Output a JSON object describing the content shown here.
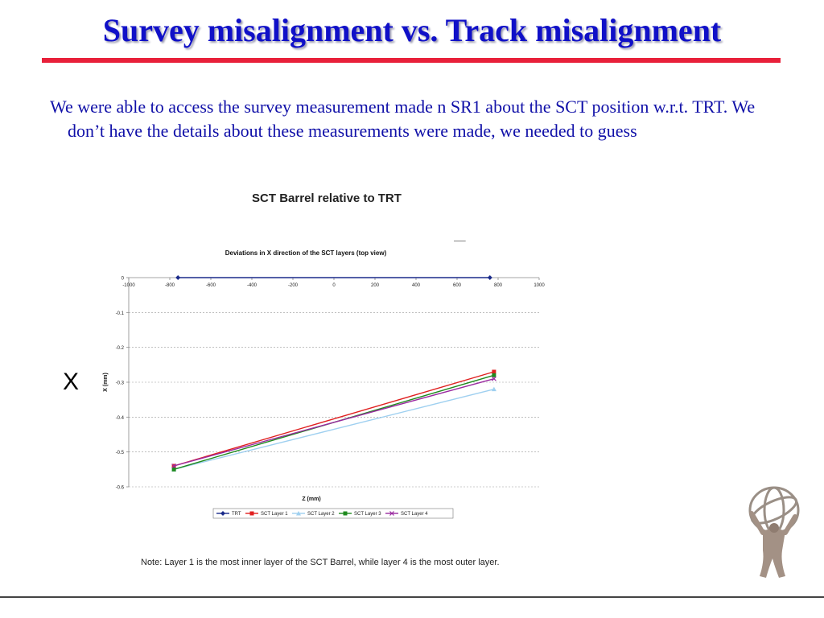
{
  "slide": {
    "title": "Survey misalignment vs. Track misalignment",
    "body": "We were able to access the survey measurement made n SR1 about the SCT position w.r.t. TRT. We don’t have the details about these measurements were made, we needed to guess",
    "chart_heading": "SCT Barrel relative to TRT",
    "axis_letter_z": "Z",
    "axis_letter_x": "X",
    "note": "Note: Layer 1 is the most inner layer of the SCT Barrel, while layer 4 is the most outer layer."
  },
  "colors": {
    "title": "#1010c8",
    "title_rule": "#e8203a",
    "body_text": "#1010a8"
  },
  "chart_data": {
    "type": "line",
    "title": "Deviations in X direction of the SCT layers (top view)",
    "xlabel": "Z (mm)",
    "ylabel": "X (mm)",
    "xlim": [
      -1000,
      1000
    ],
    "ylim": [
      -0.6,
      0
    ],
    "x_ticks": [
      -1000,
      -800,
      -600,
      -400,
      -200,
      0,
      200,
      400,
      600,
      800,
      1000
    ],
    "x_tick_labels": [
      "-1000",
      "-800",
      "-600",
      "-400",
      "-200",
      "0",
      "200",
      "400",
      "600",
      "800",
      "1000"
    ],
    "y_ticks": [
      0,
      -0.1,
      -0.2,
      -0.3,
      -0.4,
      -0.5,
      -0.6
    ],
    "y_tick_labels": [
      "0",
      "-0.1",
      "-0.2",
      "-0.3",
      "-0.4",
      "-0.5",
      "-0.6"
    ],
    "grid": "horizontal dashed",
    "legend_position": "bottom",
    "series": [
      {
        "name": "TRT",
        "color": "#1a2a8a",
        "marker": "diamond",
        "x": [
          -760,
          760
        ],
        "y": [
          0,
          0
        ]
      },
      {
        "name": "SCT Layer 1",
        "color": "#e02020",
        "marker": "square",
        "x": [
          -780,
          780
        ],
        "y": [
          -0.54,
          -0.27
        ]
      },
      {
        "name": "SCT Layer 2",
        "color": "#9fd0f0",
        "marker": "triangle",
        "x": [
          -780,
          780
        ],
        "y": [
          -0.55,
          -0.32
        ]
      },
      {
        "name": "SCT Layer 3",
        "color": "#1e8a1e",
        "marker": "square",
        "x": [
          -780,
          780
        ],
        "y": [
          -0.55,
          -0.28
        ]
      },
      {
        "name": "SCT Layer 4",
        "color": "#9a2aa0",
        "marker": "cross",
        "x": [
          -780,
          780
        ],
        "y": [
          -0.54,
          -0.29
        ]
      }
    ]
  }
}
